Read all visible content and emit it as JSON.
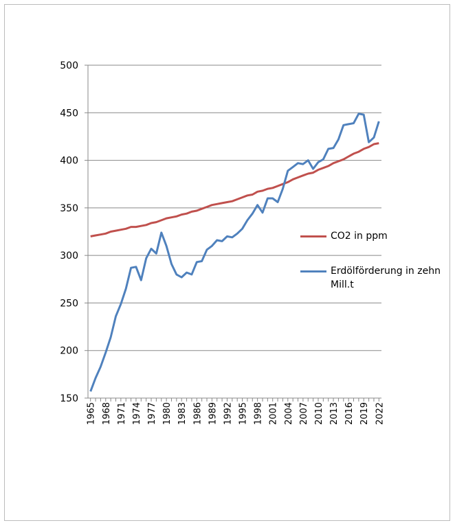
{
  "chart_data": {
    "type": "line",
    "x": [
      1965,
      1966,
      1967,
      1968,
      1969,
      1970,
      1971,
      1972,
      1973,
      1974,
      1975,
      1976,
      1977,
      1978,
      1979,
      1980,
      1981,
      1982,
      1983,
      1984,
      1985,
      1986,
      1987,
      1988,
      1989,
      1990,
      1991,
      1992,
      1993,
      1994,
      1995,
      1996,
      1997,
      1998,
      1999,
      2000,
      2001,
      2002,
      2003,
      2004,
      2005,
      2006,
      2007,
      2008,
      2009,
      2010,
      2011,
      2012,
      2013,
      2014,
      2015,
      2016,
      2017,
      2018,
      2019,
      2020,
      2021,
      2022
    ],
    "series": [
      {
        "name": "CO2 in ppm",
        "color": "#c0504d",
        "values": [
          320,
          321,
          322,
          323,
          325,
          326,
          327,
          328,
          330,
          330,
          331,
          332,
          334,
          335,
          337,
          339,
          340,
          341,
          343,
          344,
          346,
          347,
          349,
          351,
          353,
          354,
          355,
          356,
          357,
          359,
          361,
          363,
          364,
          367,
          368,
          370,
          371,
          373,
          375,
          377,
          380,
          382,
          384,
          386,
          387,
          390,
          392,
          394,
          397,
          399,
          401,
          404,
          407,
          409,
          412,
          414,
          417,
          418
        ]
      },
      {
        "name": "Erdölförderung in zehn Mill.t",
        "color": "#4f81bd",
        "values": [
          157,
          171,
          183,
          198,
          214,
          236,
          249,
          265,
          287,
          288,
          274,
          297,
          307,
          302,
          324,
          310,
          291,
          280,
          277,
          282,
          280,
          293,
          294,
          306,
          310,
          316,
          315,
          320,
          319,
          323,
          328,
          337,
          344,
          353,
          345,
          360,
          360,
          356,
          370,
          389,
          393,
          397,
          396,
          400,
          391,
          398,
          401,
          412,
          413,
          422,
          437,
          438,
          439,
          449,
          448,
          419,
          424,
          441
        ]
      }
    ],
    "xlim": [
      1964.5,
      2022.5
    ],
    "xticks": [
      1965,
      1968,
      1971,
      1974,
      1977,
      1980,
      1983,
      1986,
      1989,
      1992,
      1995,
      1998,
      2001,
      2004,
      2007,
      2010,
      2013,
      2016,
      2019,
      2022
    ],
    "ylim": [
      150,
      500
    ],
    "yticks": [
      150,
      200,
      250,
      300,
      350,
      400,
      450,
      500
    ],
    "grid": true
  }
}
